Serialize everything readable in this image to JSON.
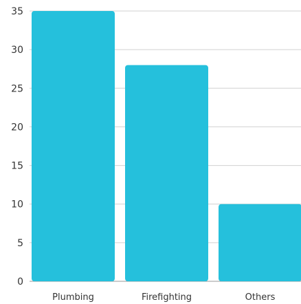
{
  "chart_data": {
    "type": "bar",
    "categories": [
      "Plumbing",
      "Firefighting",
      "Others"
    ],
    "values": [
      35,
      28,
      10
    ],
    "ylim": [
      0,
      35
    ],
    "yticks": [
      0,
      5,
      10,
      15,
      20,
      25,
      30,
      35
    ],
    "title": "",
    "xlabel": "",
    "ylabel": "",
    "grid": true,
    "legend": "none",
    "bar_color": "#25c0dc",
    "grid_color": "#d0d0d0"
  }
}
